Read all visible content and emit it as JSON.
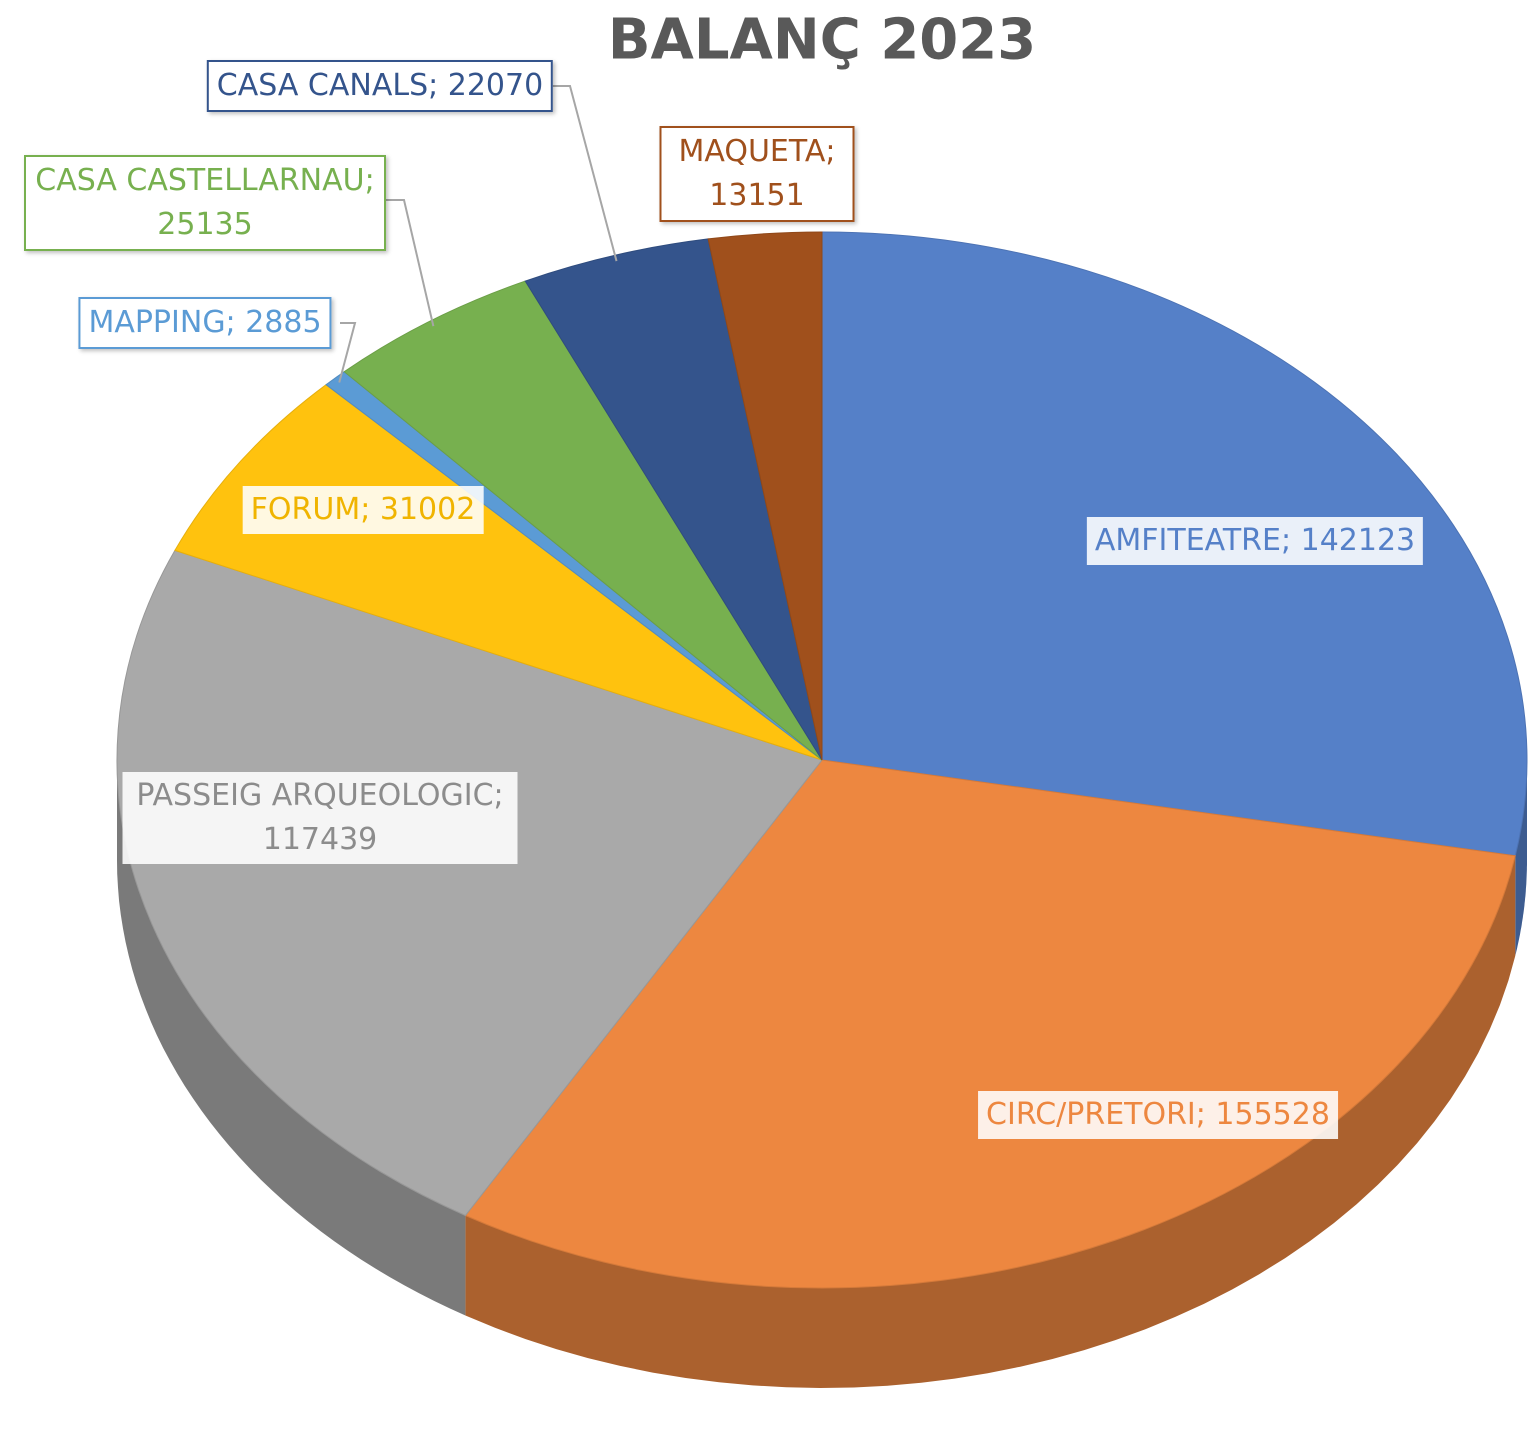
{
  "chart_data": {
    "type": "pie",
    "title": "BALANÇ 2023",
    "values": [
      142123,
      155528,
      117439,
      31002,
      2885,
      25135,
      22070,
      13151
    ],
    "value_labels": [
      "AMFITEATRE; 142123",
      "CIRC/PRETORI; 155528",
      "PASSEIG ARQUEOLOGIC; 117439",
      "FORUM; 31002",
      "MAPPING; 2885",
      "CASA CASTELLARNAU; 25135",
      "CASA CANALS; 22070",
      "MAQUETA; 13151"
    ],
    "colors": [
      "#5580c8",
      "#ed8740",
      "#a9a9a9",
      "#ffc20e",
      "#5b9bd5",
      "#77b04f",
      "#34548c",
      "#a0501c"
    ]
  }
}
